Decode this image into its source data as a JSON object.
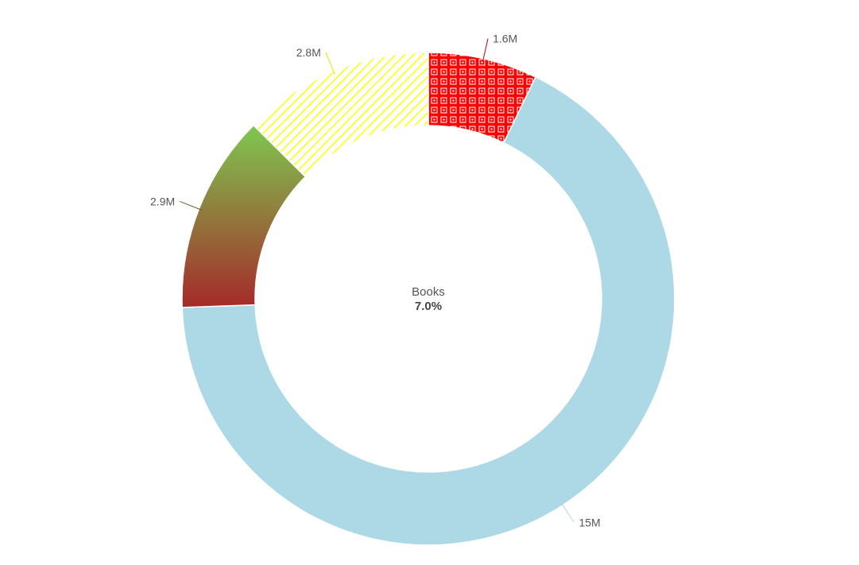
{
  "chart_data": {
    "type": "pie",
    "variant": "donut",
    "center": {
      "title": "Books",
      "value": "7.0%"
    },
    "slices": [
      {
        "name": "",
        "value": 1.6,
        "label": "1.6M",
        "fill": "pattern-red-squares",
        "color": "#ff0000",
        "line_color": "#cc0000"
      },
      {
        "name": "",
        "value": 15,
        "label": "15M",
        "fill": "solid",
        "color": "#add8e6",
        "line_color": "#add8e6"
      },
      {
        "name": "",
        "value": 2.9,
        "label": "2.9M",
        "fill": "gradient-green-red",
        "color": "#7ec850",
        "color2": "#a52a2a",
        "line_color": "#7a5a30"
      },
      {
        "name": "",
        "value": 2.8,
        "label": "2.8M",
        "fill": "pattern-yellow-hatch",
        "color": "#ffff00",
        "line_color": "#e5e500"
      }
    ]
  }
}
